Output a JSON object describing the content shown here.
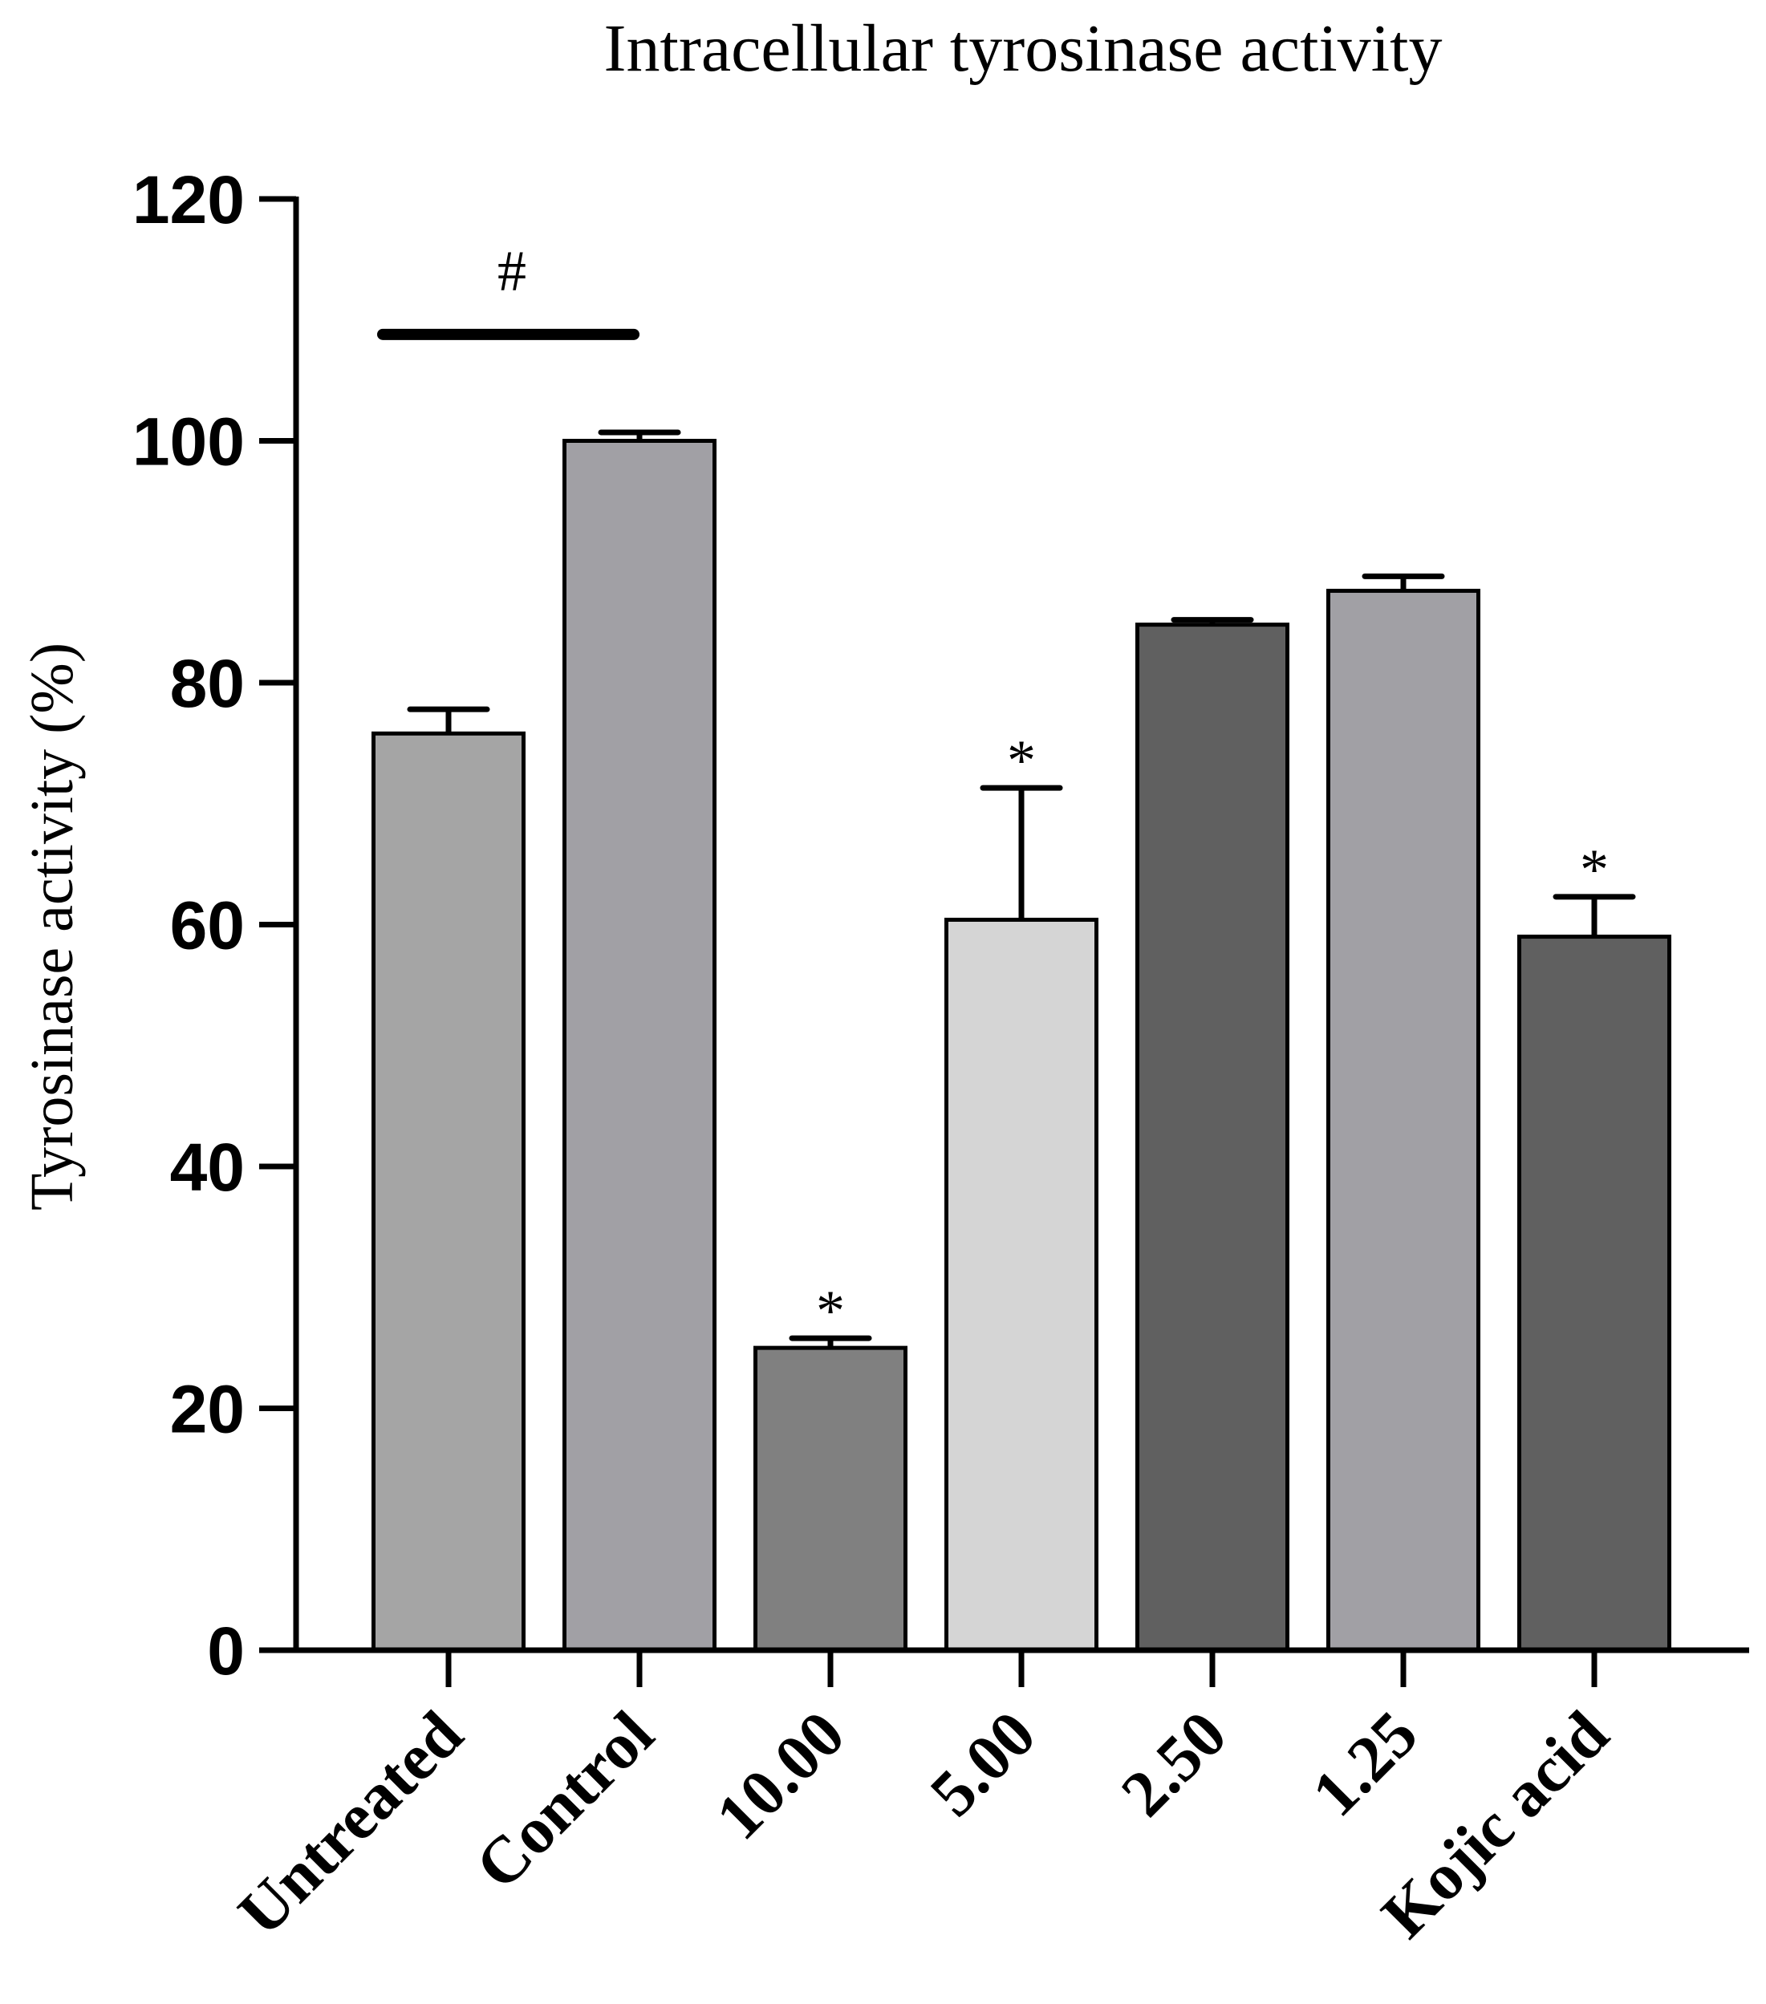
{
  "chart_data": {
    "type": "bar",
    "title": "Intracellular tyrosinase activity",
    "ylabel": "Tyrosinase activity (%)",
    "xlabel": "",
    "ylim": [
      0,
      120
    ],
    "yticks": [
      "0",
      "20",
      "40",
      "60",
      "80",
      "100",
      "120"
    ],
    "categories": [
      "Untreated",
      "Control",
      "10.00",
      "5.00",
      "2.50",
      "1.25",
      "Kojic acid"
    ],
    "values": [
      75.8,
      100,
      25,
      60.4,
      84.8,
      87.6,
      59
    ],
    "errors": [
      2,
      0.7,
      0.8,
      10.9,
      0.4,
      1.2,
      3.3
    ],
    "colors": [
      "#a5a5a5",
      "#a1a0a5",
      "#808080",
      "#d5d5d5",
      "#606060",
      "#a1a0a5",
      "#606060"
    ],
    "significance_markers": [
      "",
      "",
      "*",
      "*",
      "",
      "",
      "*"
    ],
    "bracket": {
      "from": "Untreated",
      "to": "Control",
      "y": 108.8,
      "symbol": "#"
    },
    "grid": false,
    "legend": "none"
  }
}
